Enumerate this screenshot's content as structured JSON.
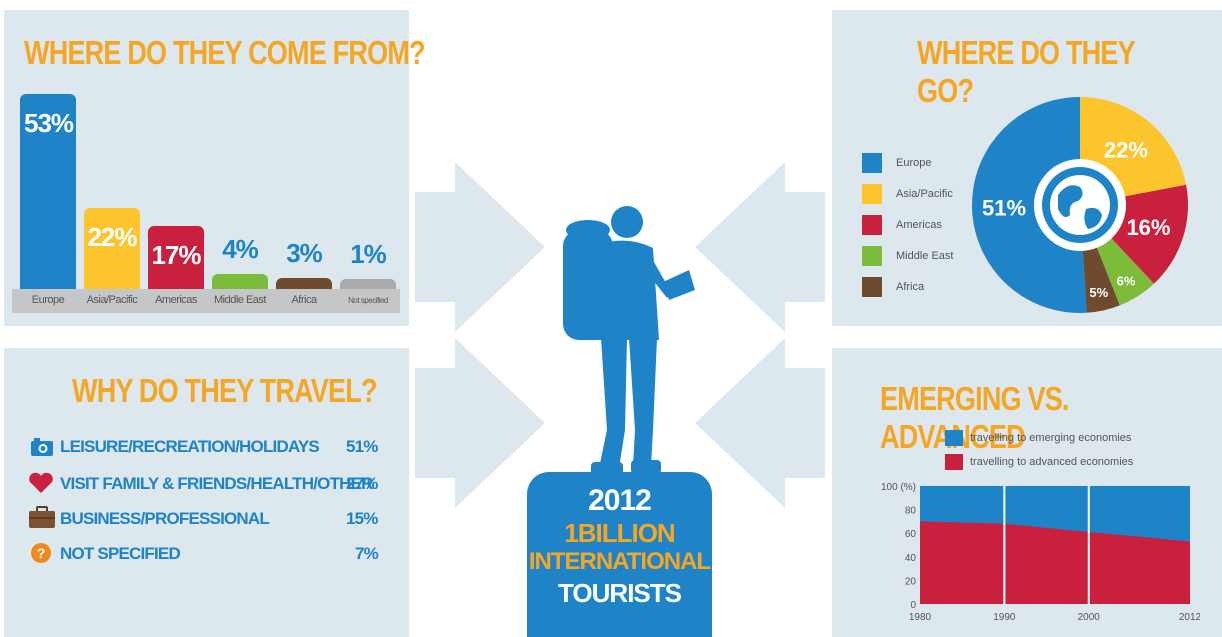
{
  "origin": {
    "title": "WHERE DO THEY COME FROM?"
  },
  "destination": {
    "title": "WHERE DO THEY GO?",
    "center_icon": "globe-icon"
  },
  "purpose": {
    "title": "WHY DO THEY TRAVEL?",
    "items": [
      {
        "icon": "camera-icon",
        "label": "LEISURE/RECREATION/HOLIDAYS",
        "value": "51%"
      },
      {
        "icon": "heart-icon",
        "label": "VISIT FAMILY & FRIENDS/HEALTH/OTHER",
        "value": "27%"
      },
      {
        "icon": "briefcase-icon",
        "label": "BUSINESS/PROFESSIONAL",
        "value": "15%"
      },
      {
        "icon": "question-icon",
        "label": "NOT SPECIFIED",
        "value": "7%"
      }
    ]
  },
  "emerging": {
    "title": "EMERGING VS. ADVANCED"
  },
  "center": {
    "year": "2012",
    "line1": "1BILLION",
    "line2": "INTERNATIONAL",
    "line3": "TOURISTS",
    "icon": "backpacker-icon"
  },
  "colors": {
    "blue": "#1f83c8",
    "yellow": "#fcc52d",
    "red": "#c8203d",
    "green": "#7dbb3a",
    "brown": "#6e4a2e",
    "gray": "#a8aaab",
    "orange": "#f5a623",
    "panel": "#dde7ee"
  },
  "chart_data": [
    {
      "type": "bar",
      "title": "WHERE DO THEY COME FROM?",
      "categories": [
        "Europe",
        "Asia/Pacific",
        "Americas",
        "Middle East",
        "Africa",
        "Not specified"
      ],
      "values": [
        53,
        22,
        17,
        4,
        3,
        1
      ],
      "labels": [
        "53%",
        "22%",
        "17%",
        "4%",
        "3%",
        "1%"
      ],
      "colors": [
        "#1f83c8",
        "#fcc52d",
        "#c8203d",
        "#7dbb3a",
        "#6e4a2e",
        "#a8aaab"
      ]
    },
    {
      "type": "pie",
      "title": "WHERE DO THEY GO?",
      "categories": [
        "Europe",
        "Asia/Pacific",
        "Americas",
        "Middle East",
        "Africa"
      ],
      "values": [
        51,
        22,
        16,
        6,
        5
      ],
      "labels": [
        "51%",
        "22%",
        "16%",
        "6%",
        "5%"
      ],
      "colors": [
        "#1f83c8",
        "#fcc52d",
        "#c8203d",
        "#7dbb3a",
        "#6e4a2e"
      ],
      "legend_placement": "left"
    },
    {
      "type": "area",
      "title": "EMERGING VS. ADVANCED",
      "x": [
        1980,
        1990,
        2000,
        2012
      ],
      "xticks": [
        "1980",
        "1990",
        "2000",
        "2012"
      ],
      "yticks": [
        "100 (%)",
        "80",
        "60",
        "40",
        "20",
        "0"
      ],
      "ylim": [
        0,
        100
      ],
      "series": [
        {
          "name": "travelling to emerging economies",
          "values": [
            30,
            32,
            39,
            47
          ],
          "color": "#1f83c8"
        },
        {
          "name": "travelling to advanced economies",
          "values": [
            70,
            68,
            61,
            53
          ],
          "color": "#c8203d"
        }
      ],
      "legend_placement": "top"
    }
  ]
}
